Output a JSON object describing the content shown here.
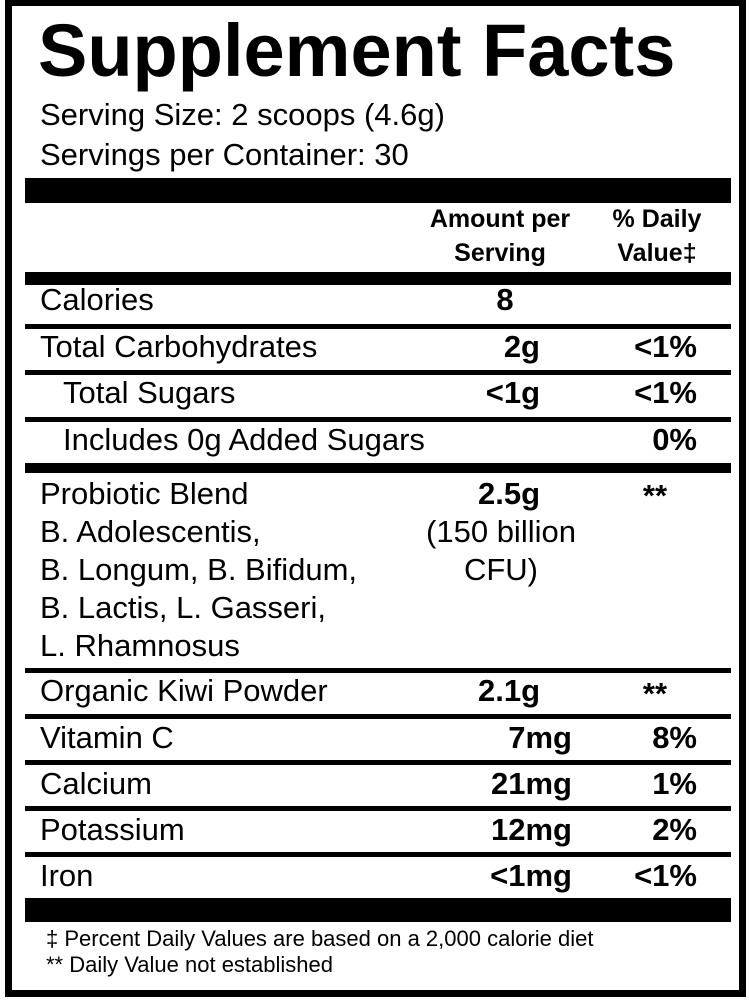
{
  "title": "Supplement Facts",
  "serving_size": "Serving Size: 2 scoops (4.6g)",
  "servings_per_container": "Servings per Container: 30",
  "header": {
    "amount_line1": "Amount per",
    "amount_line2": "Serving",
    "dv_line1": "% Daily",
    "dv_line2": "Value‡"
  },
  "rows": {
    "calories": {
      "name": "Calories",
      "amount": "8",
      "dv": ""
    },
    "carbs": {
      "name": "Total Carbohydrates",
      "amount": "2g",
      "dv": "<1%"
    },
    "sugars": {
      "name": "Total Sugars",
      "amount": "<1g",
      "dv": "<1%"
    },
    "added_sugars": {
      "name": "Includes 0g Added Sugars",
      "dv": "0%"
    },
    "probiotic": {
      "name_lines": [
        "Probiotic Blend",
        "B. Adolescentis,",
        "B. Longum, B. Bifidum,",
        "B. Lactis, L. Gasseri,",
        "L. Rhamnosus"
      ],
      "amount_lines": [
        "2.5g",
        "(150 billion",
        "CFU)"
      ],
      "dv": "**"
    },
    "kiwi": {
      "name": "Organic Kiwi Powder",
      "amount": "2.1g",
      "dv": "**"
    },
    "vitamin_c": {
      "name": "Vitamin C",
      "amount": "7mg",
      "dv": "8%"
    },
    "calcium": {
      "name": "Calcium",
      "amount": "21mg",
      "dv": "1%"
    },
    "potassium": {
      "name": "Potassium",
      "amount": "12mg",
      "dv": "2%"
    },
    "iron": {
      "name": "Iron",
      "amount": "<1mg",
      "dv": "<1%"
    }
  },
  "footnotes": {
    "dv_basis": "‡ Percent Daily Values are based on a 2,000 calorie diet",
    "not_established": "** Daily Value not established"
  }
}
